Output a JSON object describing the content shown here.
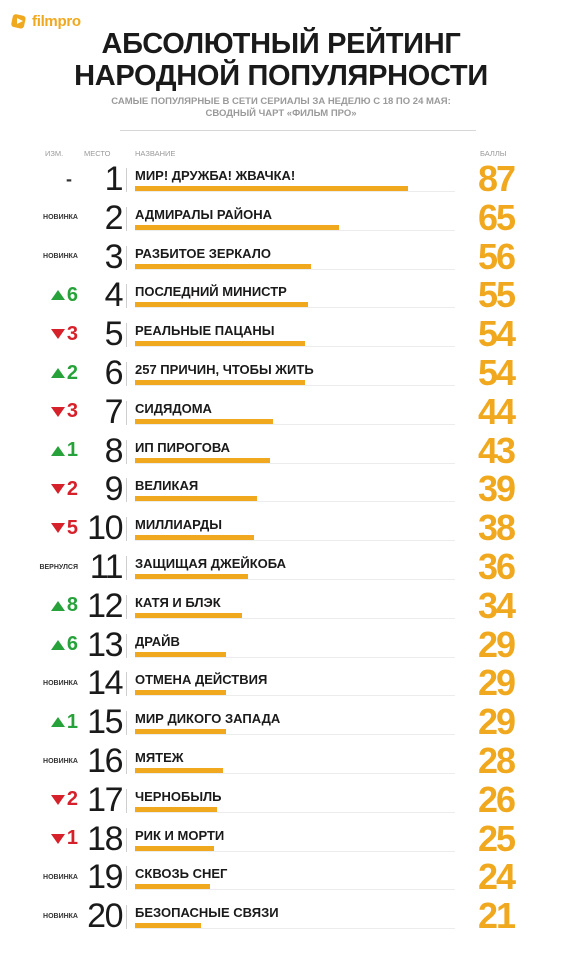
{
  "brand": {
    "logo_text": "filmpro",
    "accent": "#f0a81e",
    "up_color": "#27a23a",
    "down_color": "#d6202a"
  },
  "header": {
    "title_line1": "АБСОЛЮТНЫЙ РЕЙТИНГ",
    "title_line2": "НАРОДНОЙ ПОПУЛЯРНОСТИ",
    "subtitle_line1": "САМЫЕ ПОПУЛЯРНЫЕ В СЕТИ СЕРИАЛЫ ЗА НЕДЕЛЮ С 18 ПО 24 МАЯ:",
    "subtitle_line2": "СВОДНЫЙ ЧАРТ «ФИЛЬМ ПРО»"
  },
  "columns": {
    "change": "ИЗМ.",
    "place": "МЕСТО",
    "name": "НАЗВАНИЕ",
    "score": "БАЛЛЫ"
  },
  "chart_data": {
    "type": "bar",
    "title": "АБСОЛЮТНЫЙ РЕЙТИНГ НАРОДНОЙ ПОПУЛЯРНОСТИ",
    "xlim": [
      0,
      100
    ],
    "rows": [
      {
        "place": 1,
        "name": "МИР! ДРУЖБА! ЖВАЧКА!",
        "score": 87,
        "change_type": "same",
        "change_text": "-"
      },
      {
        "place": 2,
        "name": "АДМИРАЛЫ РАЙОНА",
        "score": 65,
        "change_type": "new",
        "change_text": "НОВИНКА"
      },
      {
        "place": 3,
        "name": "РАЗБИТОЕ ЗЕРКАЛО",
        "score": 56,
        "change_type": "new",
        "change_text": "НОВИНКА"
      },
      {
        "place": 4,
        "name": "ПОСЛЕДНИЙ МИНИСТР",
        "score": 55,
        "change_type": "up",
        "change_text": "6"
      },
      {
        "place": 5,
        "name": "РЕАЛЬНЫЕ ПАЦАНЫ",
        "score": 54,
        "change_type": "down",
        "change_text": "3"
      },
      {
        "place": 6,
        "name": "257 ПРИЧИН, ЧТОБЫ ЖИТЬ",
        "score": 54,
        "change_type": "up",
        "change_text": "2"
      },
      {
        "place": 7,
        "name": "СИДЯДОМА",
        "score": 44,
        "change_type": "down",
        "change_text": "3"
      },
      {
        "place": 8,
        "name": "ИП ПИРОГОВА",
        "score": 43,
        "change_type": "up",
        "change_text": "1"
      },
      {
        "place": 9,
        "name": "ВЕЛИКАЯ",
        "score": 39,
        "change_type": "down",
        "change_text": "2"
      },
      {
        "place": 10,
        "name": "МИЛЛИАРДЫ",
        "score": 38,
        "change_type": "down",
        "change_text": "5"
      },
      {
        "place": 11,
        "name": "ЗАЩИЩАЯ ДЖЕЙКОБА",
        "score": 36,
        "change_type": "returned",
        "change_text": "ВЕРНУЛСЯ"
      },
      {
        "place": 12,
        "name": "КАТЯ И БЛЭК",
        "score": 34,
        "change_type": "up",
        "change_text": "8"
      },
      {
        "place": 13,
        "name": "ДРАЙВ",
        "score": 29,
        "change_type": "up",
        "change_text": "6"
      },
      {
        "place": 14,
        "name": "ОТМЕНА ДЕЙСТВИЯ",
        "score": 29,
        "change_type": "new",
        "change_text": "НОВИНКА"
      },
      {
        "place": 15,
        "name": "МИР ДИКОГО ЗАПАДА",
        "score": 29,
        "change_type": "up",
        "change_text": "1"
      },
      {
        "place": 16,
        "name": "МЯТЕЖ",
        "score": 28,
        "change_type": "new",
        "change_text": "НОВИНКА"
      },
      {
        "place": 17,
        "name": "ЧЕРНОБЫЛЬ",
        "score": 26,
        "change_type": "down",
        "change_text": "2"
      },
      {
        "place": 18,
        "name": "РИК И МОРТИ",
        "score": 25,
        "change_type": "down",
        "change_text": "1"
      },
      {
        "place": 19,
        "name": "СКВОЗЬ СНЕГ",
        "score": 24,
        "change_type": "new",
        "change_text": "НОВИНКА"
      },
      {
        "place": 20,
        "name": "БЕЗОПАСНЫЕ СВЯЗИ",
        "score": 21,
        "change_type": "new",
        "change_text": "НОВИНКА"
      }
    ]
  }
}
